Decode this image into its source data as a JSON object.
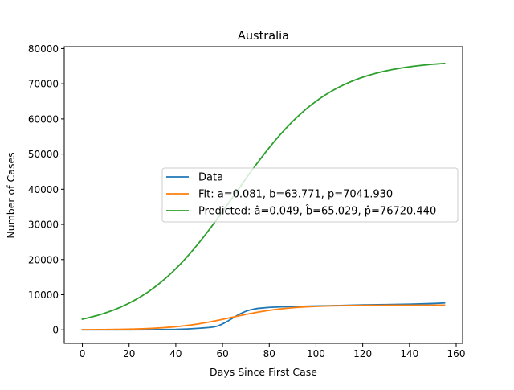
{
  "chart_data": {
    "type": "line",
    "title": "Australia",
    "xlabel": "Days Since First Case",
    "ylabel": "Number of Cases",
    "xlim": [
      -7.75,
      162.75
    ],
    "ylim": [
      -3836,
      80556
    ],
    "xticks": [
      0,
      20,
      40,
      60,
      80,
      100,
      120,
      140,
      160
    ],
    "yticks": [
      0,
      10000,
      20000,
      30000,
      40000,
      50000,
      60000,
      70000,
      80000
    ],
    "grid": false,
    "legend_position": "center-right",
    "series": [
      {
        "name": "Data",
        "color": "#1f77b4",
        "x": [
          0,
          10,
          20,
          30,
          40,
          45,
          50,
          52,
          54,
          56,
          58,
          60,
          62,
          64,
          66,
          68,
          70,
          72,
          75,
          80,
          85,
          90,
          100,
          110,
          120,
          130,
          140,
          150,
          155
        ],
        "y": [
          0,
          3,
          12,
          40,
          120,
          250,
          450,
          550,
          650,
          800,
          1100,
          1700,
          2400,
          3200,
          4000,
          4700,
          5300,
          5700,
          6100,
          6400,
          6550,
          6650,
          6800,
          6950,
          7100,
          7200,
          7300,
          7500,
          7650
        ]
      },
      {
        "name": "Fit: a=0.081, b=63.771, p=7041.930",
        "color": "#ff7f0e",
        "logistic": {
          "a": 0.081,
          "b": 63.771,
          "p": 7041.93
        },
        "x_range": [
          0,
          155
        ]
      },
      {
        "name": "Predicted: â=0.049, b̂=65.029, p̂=76720.440",
        "color": "#2ca02c",
        "logistic": {
          "a": 0.049,
          "b": 65.029,
          "p": 76720.44
        },
        "x_range": [
          0,
          155
        ]
      }
    ]
  }
}
